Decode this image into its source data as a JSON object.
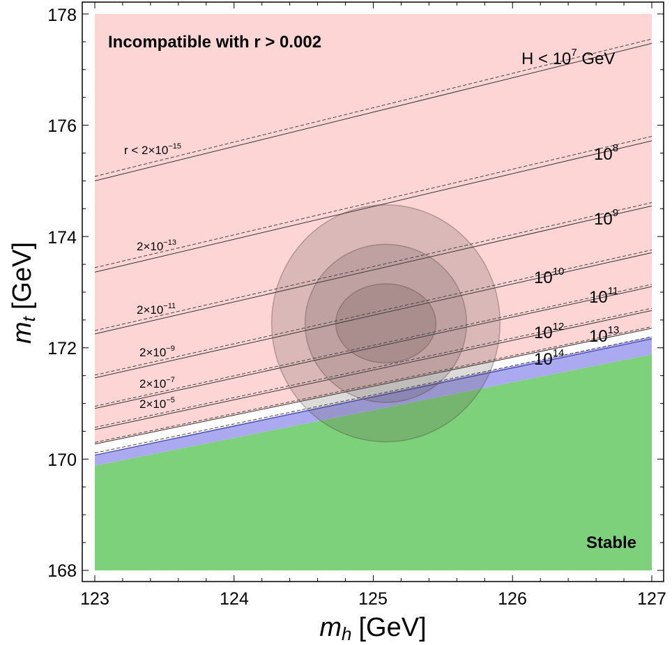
{
  "chart_data": {
    "type": "region-plot",
    "xlabel": {
      "symbol": "m",
      "subscript": "h",
      "unit": "[GeV]"
    },
    "ylabel": {
      "symbol": "m",
      "subscript": "t",
      "unit": "[GeV]"
    },
    "xlim": [
      123,
      127
    ],
    "ylim": [
      168,
      178
    ],
    "x_ticks": [
      "123",
      "124",
      "125",
      "126",
      "127"
    ],
    "y_ticks": [
      "168",
      "170",
      "172",
      "174",
      "176",
      "178"
    ],
    "grid": false,
    "regions": [
      {
        "name": "incompatible",
        "label": "Incompatible with r > 0.002",
        "color": "#fdd5d5",
        "lower_edge": [
          [
            123,
            170.27
          ],
          [
            127,
            172.35
          ]
        ]
      },
      {
        "name": "instability-band",
        "color": "#abaaf0",
        "lower_edge": [
          [
            123,
            169.88
          ],
          [
            127,
            171.88
          ]
        ],
        "upper_edge": [
          [
            123,
            170.08
          ],
          [
            127,
            172.2
          ]
        ]
      },
      {
        "name": "stable",
        "label": "Stable",
        "color": "#7dd17b",
        "upper_edge": [
          [
            123,
            169.88
          ],
          [
            127,
            171.88
          ]
        ]
      }
    ],
    "h_bound_lines": [
      {
        "label_base": "H < 10",
        "label_exp": "7",
        "label_suffix": " GeV",
        "solid": [
          [
            123,
            175.0
          ],
          [
            127,
            177.47
          ]
        ],
        "dashed": [
          [
            123,
            175.08
          ],
          [
            127,
            177.55
          ]
        ]
      },
      {
        "label_base": "10",
        "label_exp": "8",
        "solid": [
          [
            123,
            173.36
          ],
          [
            127,
            175.72
          ]
        ],
        "dashed": [
          [
            123,
            173.44
          ],
          [
            127,
            175.8
          ]
        ]
      },
      {
        "label_base": "10",
        "label_exp": "9",
        "solid": [
          [
            123,
            172.25
          ],
          [
            127,
            174.55
          ]
        ],
        "dashed": [
          [
            123,
            172.31
          ],
          [
            127,
            174.61
          ]
        ]
      },
      {
        "label_base": "10",
        "label_exp": "10",
        "solid": [
          [
            123,
            171.46
          ],
          [
            127,
            173.71
          ]
        ],
        "dashed": [
          [
            123,
            171.51
          ],
          [
            127,
            173.76
          ]
        ]
      },
      {
        "label_base": "10",
        "label_exp": "11",
        "solid": [
          [
            123,
            170.91
          ],
          [
            127,
            173.1
          ]
        ],
        "dashed": [
          [
            123,
            170.95
          ],
          [
            127,
            173.14
          ]
        ]
      },
      {
        "label_base": "10",
        "label_exp": "12",
        "solid": [
          [
            123,
            170.53
          ],
          [
            127,
            172.67
          ]
        ],
        "dashed": [
          [
            123,
            170.57
          ],
          [
            127,
            172.71
          ]
        ]
      },
      {
        "label_base": "10",
        "label_exp": "13",
        "solid": [
          [
            123,
            170.27
          ],
          [
            127,
            172.35
          ]
        ],
        "dashed": [
          [
            123,
            170.3
          ],
          [
            127,
            172.38
          ]
        ]
      },
      {
        "label_base": "10",
        "label_exp": "14",
        "solid": [
          [
            123,
            170.07
          ],
          [
            127,
            172.16
          ]
        ],
        "dashed": [
          [
            123,
            170.11
          ],
          [
            127,
            172.2
          ]
        ]
      }
    ],
    "r_labels": [
      {
        "base": "r < 2×10",
        "exp": "−15"
      },
      {
        "base": "2×10",
        "exp": "−13"
      },
      {
        "base": "2×10",
        "exp": "−11"
      },
      {
        "base": "2×10",
        "exp": "−9"
      },
      {
        "base": "2×10",
        "exp": "−7"
      },
      {
        "base": "2×10",
        "exp": "−5"
      }
    ],
    "confidence_ellipses": [
      {
        "sigma": 3,
        "center": [
          125.09,
          172.44
        ],
        "half_width": 0.82,
        "half_height": 2.13
      },
      {
        "sigma": 2,
        "center": [
          125.09,
          172.44
        ],
        "half_width": 0.58,
        "half_height": 1.42
      },
      {
        "sigma": 1,
        "center": [
          125.09,
          172.44
        ],
        "half_width": 0.36,
        "half_height": 0.71
      }
    ]
  }
}
